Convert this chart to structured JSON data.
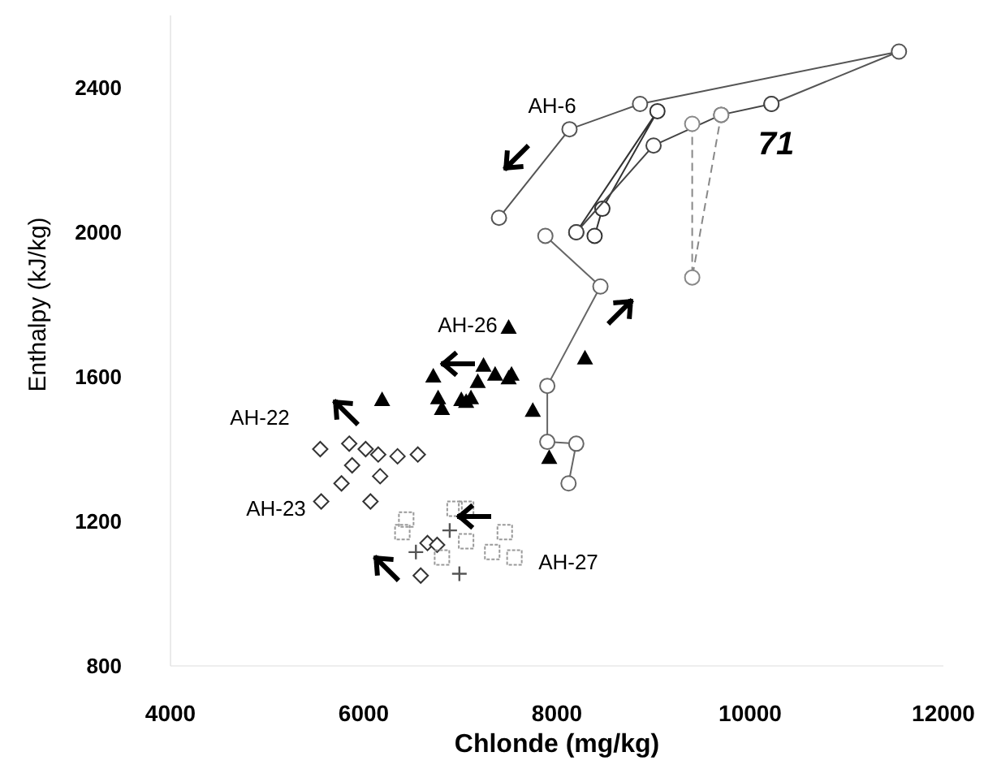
{
  "chart_data": {
    "type": "scatter",
    "xlabel": "Chlonde (mg/kg)",
    "ylabel": "Enthalpy (kJ/kg)",
    "xlim": [
      4000,
      12000
    ],
    "ylim": [
      800,
      2600
    ],
    "xticks": [
      4000,
      6000,
      8000,
      10000,
      12000
    ],
    "yticks": [
      800,
      1200,
      1600,
      2000,
      2400
    ],
    "series": [
      {
        "type": "line",
        "color": "#555555",
        "marker": "circle",
        "line_style": "solid",
        "x": [
          7400,
          8130,
          8860,
          11540,
          10220
        ],
        "values": [
          2040,
          2285,
          2355,
          2500,
          2355
        ]
      },
      {
        "type": "line",
        "color": "#333333",
        "marker": "circle",
        "line_style": "solid",
        "x": [
          8200,
          9040,
          8470,
          8390
        ],
        "values": [
          2000,
          2335,
          2065,
          1990
        ]
      },
      {
        "type": "line",
        "color": "#444444",
        "marker": "circle",
        "line_style": "solid",
        "x": [
          8200,
          9000,
          9700,
          10220
        ],
        "values": [
          2000,
          2240,
          2325,
          2355
        ]
      },
      {
        "type": "line",
        "color": "#888888",
        "marker": "circle",
        "line_style": "dashed",
        "x": [
          9400,
          9400,
          9700
        ],
        "values": [
          2300,
          1875,
          2325
        ]
      },
      {
        "type": "line",
        "color": "#666666",
        "marker": "circle",
        "line_style": "solid",
        "x": [
          7880,
          8450,
          7900,
          7900,
          8200,
          8120
        ],
        "values": [
          1990,
          1850,
          1575,
          1420,
          1415,
          1305
        ]
      },
      {
        "color": "#000000",
        "marker": "triangle",
        "x": [
          7500,
          8290,
          7240,
          7530,
          7360,
          7180,
          6720,
          6190,
          6770,
          6810,
          7010,
          7110,
          7060,
          7750,
          7920,
          7500
        ],
        "values": [
          1735,
          1650,
          1630,
          1605,
          1605,
          1585,
          1600,
          1535,
          1540,
          1510,
          1535,
          1540,
          1530,
          1505,
          1375,
          1595
        ]
      },
      {
        "color": "#333333",
        "marker": "diamond",
        "x": [
          5550,
          5850,
          6020,
          6150,
          6350,
          6560,
          5880,
          5770,
          5560,
          6070,
          6170,
          6660,
          6760,
          6590
        ],
        "values": [
          1400,
          1415,
          1400,
          1385,
          1380,
          1385,
          1355,
          1305,
          1255,
          1255,
          1325,
          1140,
          1135,
          1050
        ]
      },
      {
        "color": "#999999",
        "marker": "square",
        "x": [
          6440,
          6400,
          6810,
          7060,
          7330,
          7460,
          7560,
          7060,
          6940
        ],
        "values": [
          1205,
          1170,
          1100,
          1145,
          1115,
          1170,
          1100,
          1235,
          1235
        ]
      },
      {
        "color": "#555555",
        "marker": "cross",
        "x": [
          6990,
          6540,
          6890
        ],
        "values": [
          1055,
          1115,
          1175
        ]
      }
    ],
    "annotations": [
      "AH-6",
      "71",
      "AH-26",
      "AH-22",
      "AH-23",
      "AH-27"
    ]
  }
}
